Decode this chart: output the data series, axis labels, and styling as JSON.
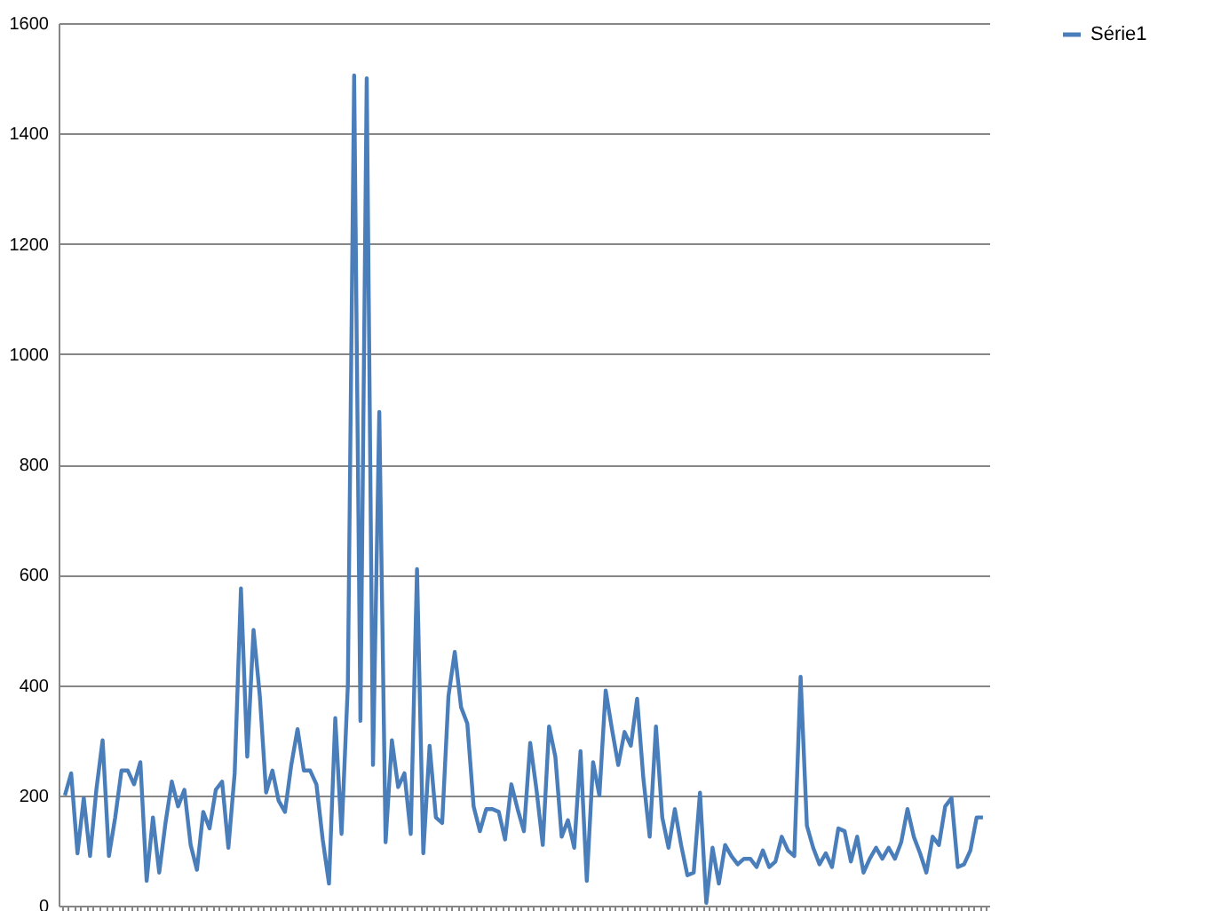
{
  "chart_data": {
    "type": "line",
    "categories": [
      null,
      null,
      null,
      null,
      null,
      null,
      null,
      null,
      null,
      null,
      null,
      null,
      null,
      null,
      null,
      null,
      null,
      null,
      null,
      null,
      null,
      null,
      null,
      null,
      null,
      null,
      null,
      null,
      null,
      null,
      null,
      null,
      null,
      null,
      null,
      null,
      null,
      null,
      null,
      null,
      null,
      null,
      null,
      null,
      null,
      null,
      null,
      null,
      null,
      null,
      null,
      null,
      null,
      null,
      null,
      null,
      null,
      null,
      null,
      null,
      null,
      null,
      null,
      null,
      null,
      null,
      null,
      null,
      null,
      null,
      null,
      null,
      null,
      null,
      null,
      null,
      null,
      null,
      null,
      null,
      null,
      null,
      null,
      null,
      null,
      null,
      null,
      null,
      null,
      null,
      null,
      null,
      null,
      null,
      null,
      null,
      null,
      null,
      null,
      null,
      null,
      null,
      null,
      null,
      null,
      null,
      null,
      null,
      null,
      null,
      null,
      null,
      null,
      null,
      null,
      null,
      null,
      null,
      null,
      null,
      null,
      null,
      null,
      null,
      null,
      null,
      null,
      null,
      null,
      null,
      null,
      null,
      null,
      null,
      null,
      null,
      null,
      null,
      null,
      null,
      null,
      null,
      null,
      null,
      null,
      null,
      null
    ],
    "series": [
      {
        "name": "Série1",
        "color": "#4a7ebb",
        "values": [
          200,
          240,
          95,
          195,
          90,
          210,
          300,
          90,
          160,
          245,
          245,
          220,
          260,
          45,
          160,
          60,
          150,
          225,
          180,
          210,
          110,
          65,
          170,
          140,
          210,
          225,
          105,
          240,
          575,
          270,
          500,
          380,
          205,
          245,
          190,
          170,
          255,
          320,
          245,
          245,
          220,
          120,
          40,
          340,
          130,
          400,
          1505,
          335,
          1500,
          255,
          895,
          115,
          300,
          215,
          240,
          130,
          610,
          95,
          290,
          160,
          150,
          380,
          460,
          360,
          330,
          180,
          135,
          175,
          175,
          170,
          120,
          220,
          175,
          135,
          295,
          210,
          110,
          325,
          270,
          125,
          155,
          105,
          280,
          45,
          260,
          200,
          390,
          320,
          255,
          315,
          290,
          375,
          230,
          125,
          325,
          160,
          105,
          175,
          110,
          55,
          60,
          205,
          5,
          105,
          40,
          110,
          90,
          75,
          85,
          85,
          70,
          100,
          70,
          80,
          125,
          100,
          90,
          415,
          145,
          105,
          75,
          95,
          70,
          140,
          135,
          80,
          125,
          60,
          85,
          105,
          85,
          105,
          85,
          115,
          175,
          125,
          95,
          60,
          125,
          110,
          180,
          195,
          70,
          75,
          100,
          160,
          160
        ]
      }
    ],
    "ylim": [
      0,
      1600
    ],
    "yticks": [
      0,
      200,
      400,
      600,
      800,
      1000,
      1200,
      1400,
      1600
    ],
    "grid": "y",
    "legend": "right"
  }
}
